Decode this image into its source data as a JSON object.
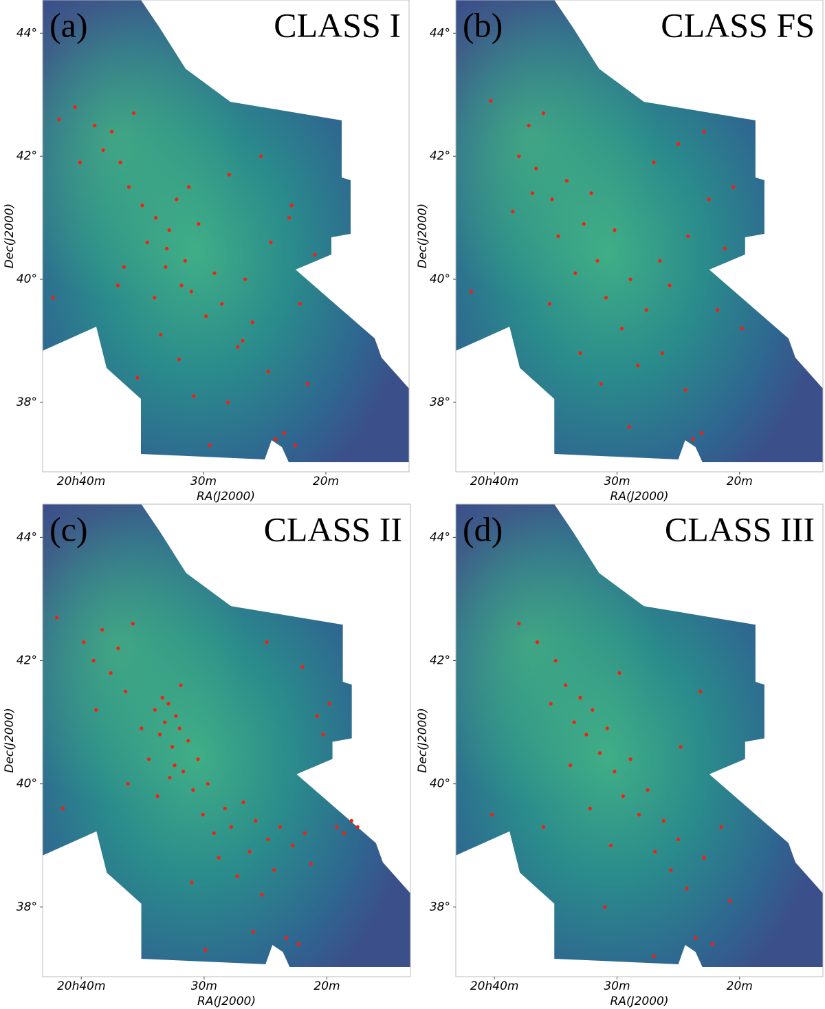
{
  "chart_data": [
    {
      "type": "scatter",
      "panel_label": "(a)",
      "title": "CLASS I",
      "xlabel": "RA(J2000)",
      "ylabel": "Dec(J2000)",
      "color": "#ff1a0a",
      "xlim": [
        43.15,
        13.2
      ],
      "ylim": [
        36.87,
        44.54
      ],
      "xticks": [
        {
          "value": 40,
          "label": "20h40m"
        },
        {
          "value": 30,
          "label": "30m"
        },
        {
          "value": 20,
          "label": "20m"
        }
      ],
      "yticks": [
        {
          "value": 38,
          "label": "38°"
        },
        {
          "value": 40,
          "label": "40°"
        },
        {
          "value": 42,
          "label": "42°"
        },
        {
          "value": 44,
          "label": "44°"
        }
      ],
      "x": [
        41.8,
        40.5,
        40.1,
        38.2,
        37.5,
        36.8,
        36.1,
        35.7,
        35.0,
        34.6,
        33.9,
        33.1,
        32.8,
        32.2,
        31.5,
        31.0,
        30.4,
        29.8,
        29.1,
        28.5,
        27.9,
        27.2,
        26.6,
        26.0,
        25.3,
        24.7,
        24.1,
        23.4,
        22.8,
        22.1,
        21.5,
        20.9,
        33.5,
        32.0,
        30.8,
        29.5,
        35.4,
        37.0,
        34.0,
        31.2,
        26.8,
        24.5,
        23.0,
        22.5,
        36.5,
        28.0,
        31.8,
        33.0,
        38.9,
        42.3
      ],
      "values": [
        42.6,
        42.8,
        41.9,
        42.1,
        42.4,
        41.9,
        41.5,
        42.7,
        41.2,
        40.6,
        41.0,
        40.2,
        40.8,
        41.3,
        40.3,
        39.8,
        40.9,
        39.4,
        40.1,
        39.6,
        41.7,
        38.9,
        40.0,
        39.3,
        42.0,
        38.5,
        37.4,
        37.5,
        41.2,
        39.6,
        38.3,
        40.4,
        39.1,
        38.7,
        38.1,
        37.3,
        38.4,
        39.9,
        39.7,
        41.5,
        39.0,
        40.6,
        41.0,
        37.3,
        40.2,
        38.0,
        39.9,
        40.5,
        42.5,
        39.7
      ]
    },
    {
      "type": "scatter",
      "panel_label": "(b)",
      "title": "CLASS FS",
      "xlabel": "RA(J2000)",
      "ylabel": "Dec(J2000)",
      "color": "#ff1a0a",
      "xlim": [
        43.15,
        13.2
      ],
      "ylim": [
        36.87,
        44.54
      ],
      "xticks": [
        {
          "value": 40,
          "label": "20h40m"
        },
        {
          "value": 30,
          "label": "30m"
        },
        {
          "value": 20,
          "label": "20m"
        }
      ],
      "yticks": [
        {
          "value": 38,
          "label": "38°"
        },
        {
          "value": 40,
          "label": "40°"
        },
        {
          "value": 42,
          "label": "42°"
        },
        {
          "value": 44,
          "label": "44°"
        }
      ],
      "x": [
        41.9,
        40.3,
        38.0,
        37.2,
        36.6,
        36.0,
        35.3,
        34.8,
        34.1,
        33.4,
        32.7,
        32.1,
        31.6,
        30.9,
        30.2,
        29.6,
        28.9,
        28.3,
        27.6,
        27.0,
        26.3,
        25.7,
        25.0,
        24.4,
        23.8,
        23.1,
        22.5,
        21.8,
        21.2,
        20.5,
        36.9,
        35.5,
        33.0,
        31.3,
        29.0,
        26.5,
        24.2,
        22.9,
        38.5,
        19.8
      ],
      "values": [
        39.8,
        42.9,
        42.0,
        42.5,
        41.8,
        42.7,
        41.3,
        40.7,
        41.6,
        40.1,
        40.9,
        41.4,
        40.3,
        39.7,
        40.8,
        39.2,
        40.0,
        38.6,
        39.5,
        41.9,
        38.8,
        39.9,
        42.2,
        38.2,
        37.4,
        37.5,
        41.3,
        39.5,
        40.5,
        41.5,
        41.4,
        39.6,
        38.8,
        38.3,
        37.6,
        40.3,
        40.7,
        42.4,
        41.1,
        39.2
      ]
    },
    {
      "type": "scatter",
      "panel_label": "(c)",
      "title": "CLASS II",
      "xlabel": "RA(J2000)",
      "ylabel": "Dec(J2000)",
      "color": "#ff1a0a",
      "xlim": [
        43.15,
        13.2
      ],
      "ylim": [
        36.87,
        44.54
      ],
      "xticks": [
        {
          "value": 40,
          "label": "20h40m"
        },
        {
          "value": 30,
          "label": "30m"
        },
        {
          "value": 20,
          "label": "20m"
        }
      ],
      "yticks": [
        {
          "value": 38,
          "label": "38°"
        },
        {
          "value": 40,
          "label": "40°"
        },
        {
          "value": 42,
          "label": "42°"
        },
        {
          "value": 44,
          "label": "44°"
        }
      ],
      "x": [
        42.0,
        41.5,
        39.8,
        39.0,
        38.3,
        37.6,
        37.0,
        36.4,
        35.8,
        35.1,
        34.5,
        34.0,
        33.6,
        33.2,
        32.9,
        32.6,
        32.3,
        32.0,
        31.7,
        31.3,
        30.9,
        30.5,
        30.1,
        29.7,
        29.2,
        28.8,
        28.3,
        27.8,
        27.3,
        26.8,
        26.3,
        25.8,
        25.3,
        24.8,
        24.3,
        23.8,
        23.3,
        22.8,
        22.3,
        21.8,
        21.3,
        20.8,
        20.3,
        19.8,
        19.2,
        18.6,
        18.0,
        17.5,
        33.4,
        32.4,
        31.9,
        32.8,
        33.8,
        31.0,
        36.2,
        38.8,
        24.9,
        22.0,
        26.0,
        29.9
      ],
      "values": [
        42.7,
        39.6,
        42.3,
        42.0,
        42.5,
        41.8,
        42.2,
        41.5,
        42.6,
        40.9,
        40.4,
        41.2,
        40.8,
        41.0,
        41.3,
        40.6,
        41.1,
        40.9,
        40.2,
        40.7,
        39.9,
        40.4,
        39.5,
        40.0,
        39.2,
        38.8,
        39.6,
        39.3,
        38.5,
        39.7,
        38.9,
        39.4,
        38.2,
        39.1,
        38.6,
        39.3,
        37.5,
        39.0,
        37.4,
        39.2,
        38.7,
        41.1,
        40.8,
        41.3,
        39.3,
        39.2,
        39.4,
        39.3,
        41.4,
        40.3,
        41.6,
        40.1,
        39.8,
        38.4,
        40.0,
        41.2,
        42.3,
        41.9,
        37.6,
        37.3
      ]
    },
    {
      "type": "scatter",
      "panel_label": "(d)",
      "title": "CLASS III",
      "xlabel": "RA(J2000)",
      "ylabel": "Dec(J2000)",
      "color": "#ff1a0a",
      "xlim": [
        43.15,
        13.2
      ],
      "ylim": [
        36.87,
        44.54
      ],
      "xticks": [
        {
          "value": 40,
          "label": "20h40m"
        },
        {
          "value": 30,
          "label": "30m"
        },
        {
          "value": 20,
          "label": "20m"
        }
      ],
      "yticks": [
        {
          "value": 38,
          "label": "38°"
        },
        {
          "value": 40,
          "label": "40°"
        },
        {
          "value": 42,
          "label": "42°"
        },
        {
          "value": 44,
          "label": "44°"
        }
      ],
      "x": [
        38.0,
        36.5,
        35.4,
        34.2,
        33.5,
        33.0,
        32.5,
        32.0,
        31.4,
        30.8,
        30.2,
        29.5,
        28.9,
        28.2,
        27.5,
        26.9,
        26.2,
        25.6,
        25.0,
        24.3,
        23.6,
        22.9,
        22.2,
        21.5,
        20.8,
        33.8,
        32.2,
        31.0,
        27.0,
        24.8,
        36.0,
        29.8,
        23.2,
        35.0,
        30.5,
        40.2
      ],
      "values": [
        42.6,
        42.3,
        41.3,
        41.6,
        41.0,
        41.4,
        40.8,
        41.2,
        40.5,
        40.9,
        40.2,
        39.8,
        40.4,
        39.5,
        39.9,
        38.9,
        39.4,
        38.6,
        39.1,
        38.3,
        37.5,
        38.8,
        37.4,
        39.3,
        38.1,
        40.3,
        39.6,
        38.0,
        37.2,
        40.6,
        39.3,
        41.8,
        41.5,
        42.0,
        39.0,
        39.5
      ]
    }
  ]
}
